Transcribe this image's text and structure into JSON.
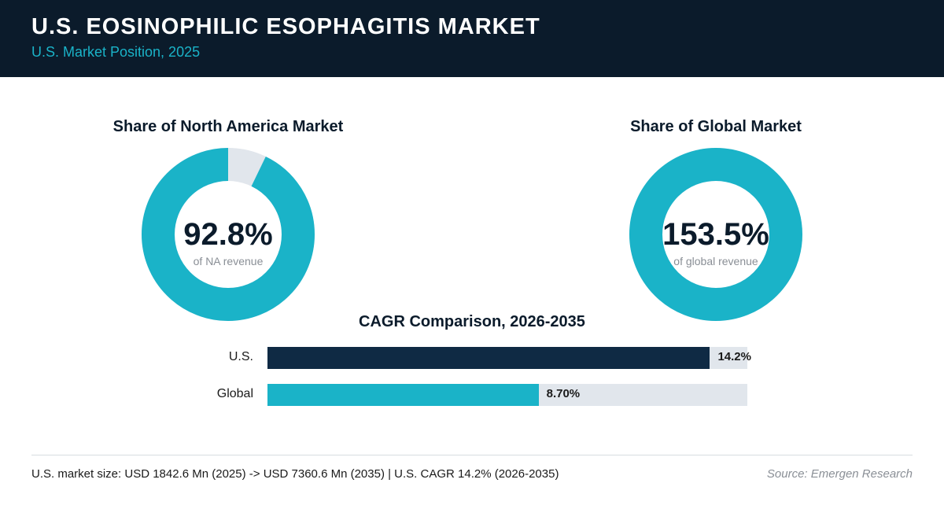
{
  "header": {
    "title": "U.S. EOSINOPHILIC ESOPHAGITIS MARKET",
    "subtitle": "U.S. Market Position, 2025"
  },
  "colors": {
    "header_bg": "#0b1b2b",
    "accent": "#1ab3c8",
    "navy": "#0f2a44",
    "track": "#e1e6ec"
  },
  "chart_data": [
    {
      "type": "pie",
      "title": "Share of North America Market",
      "value_label": "92.8%",
      "caption": "of NA revenue",
      "share": 92.8
    },
    {
      "type": "pie",
      "title": "Share of Global Market",
      "value_label": "153.5%",
      "caption": "of global revenue",
      "share": 153.5
    },
    {
      "type": "bar",
      "orientation": "horizontal",
      "title": "CAGR Comparison, 2026-2035",
      "categories": [
        "U.S.",
        "Global"
      ],
      "values": [
        14.2,
        8.7
      ],
      "value_labels": [
        "14.2%",
        "8.70%"
      ],
      "xlim": [
        0,
        15.4
      ]
    }
  ],
  "footer": {
    "note": "U.S. market size: USD 1842.6 Mn (2025) -> USD 7360.6 Mn (2035)  |  U.S. CAGR 14.2% (2026-2035)",
    "source": "Source: Emergen Research"
  }
}
